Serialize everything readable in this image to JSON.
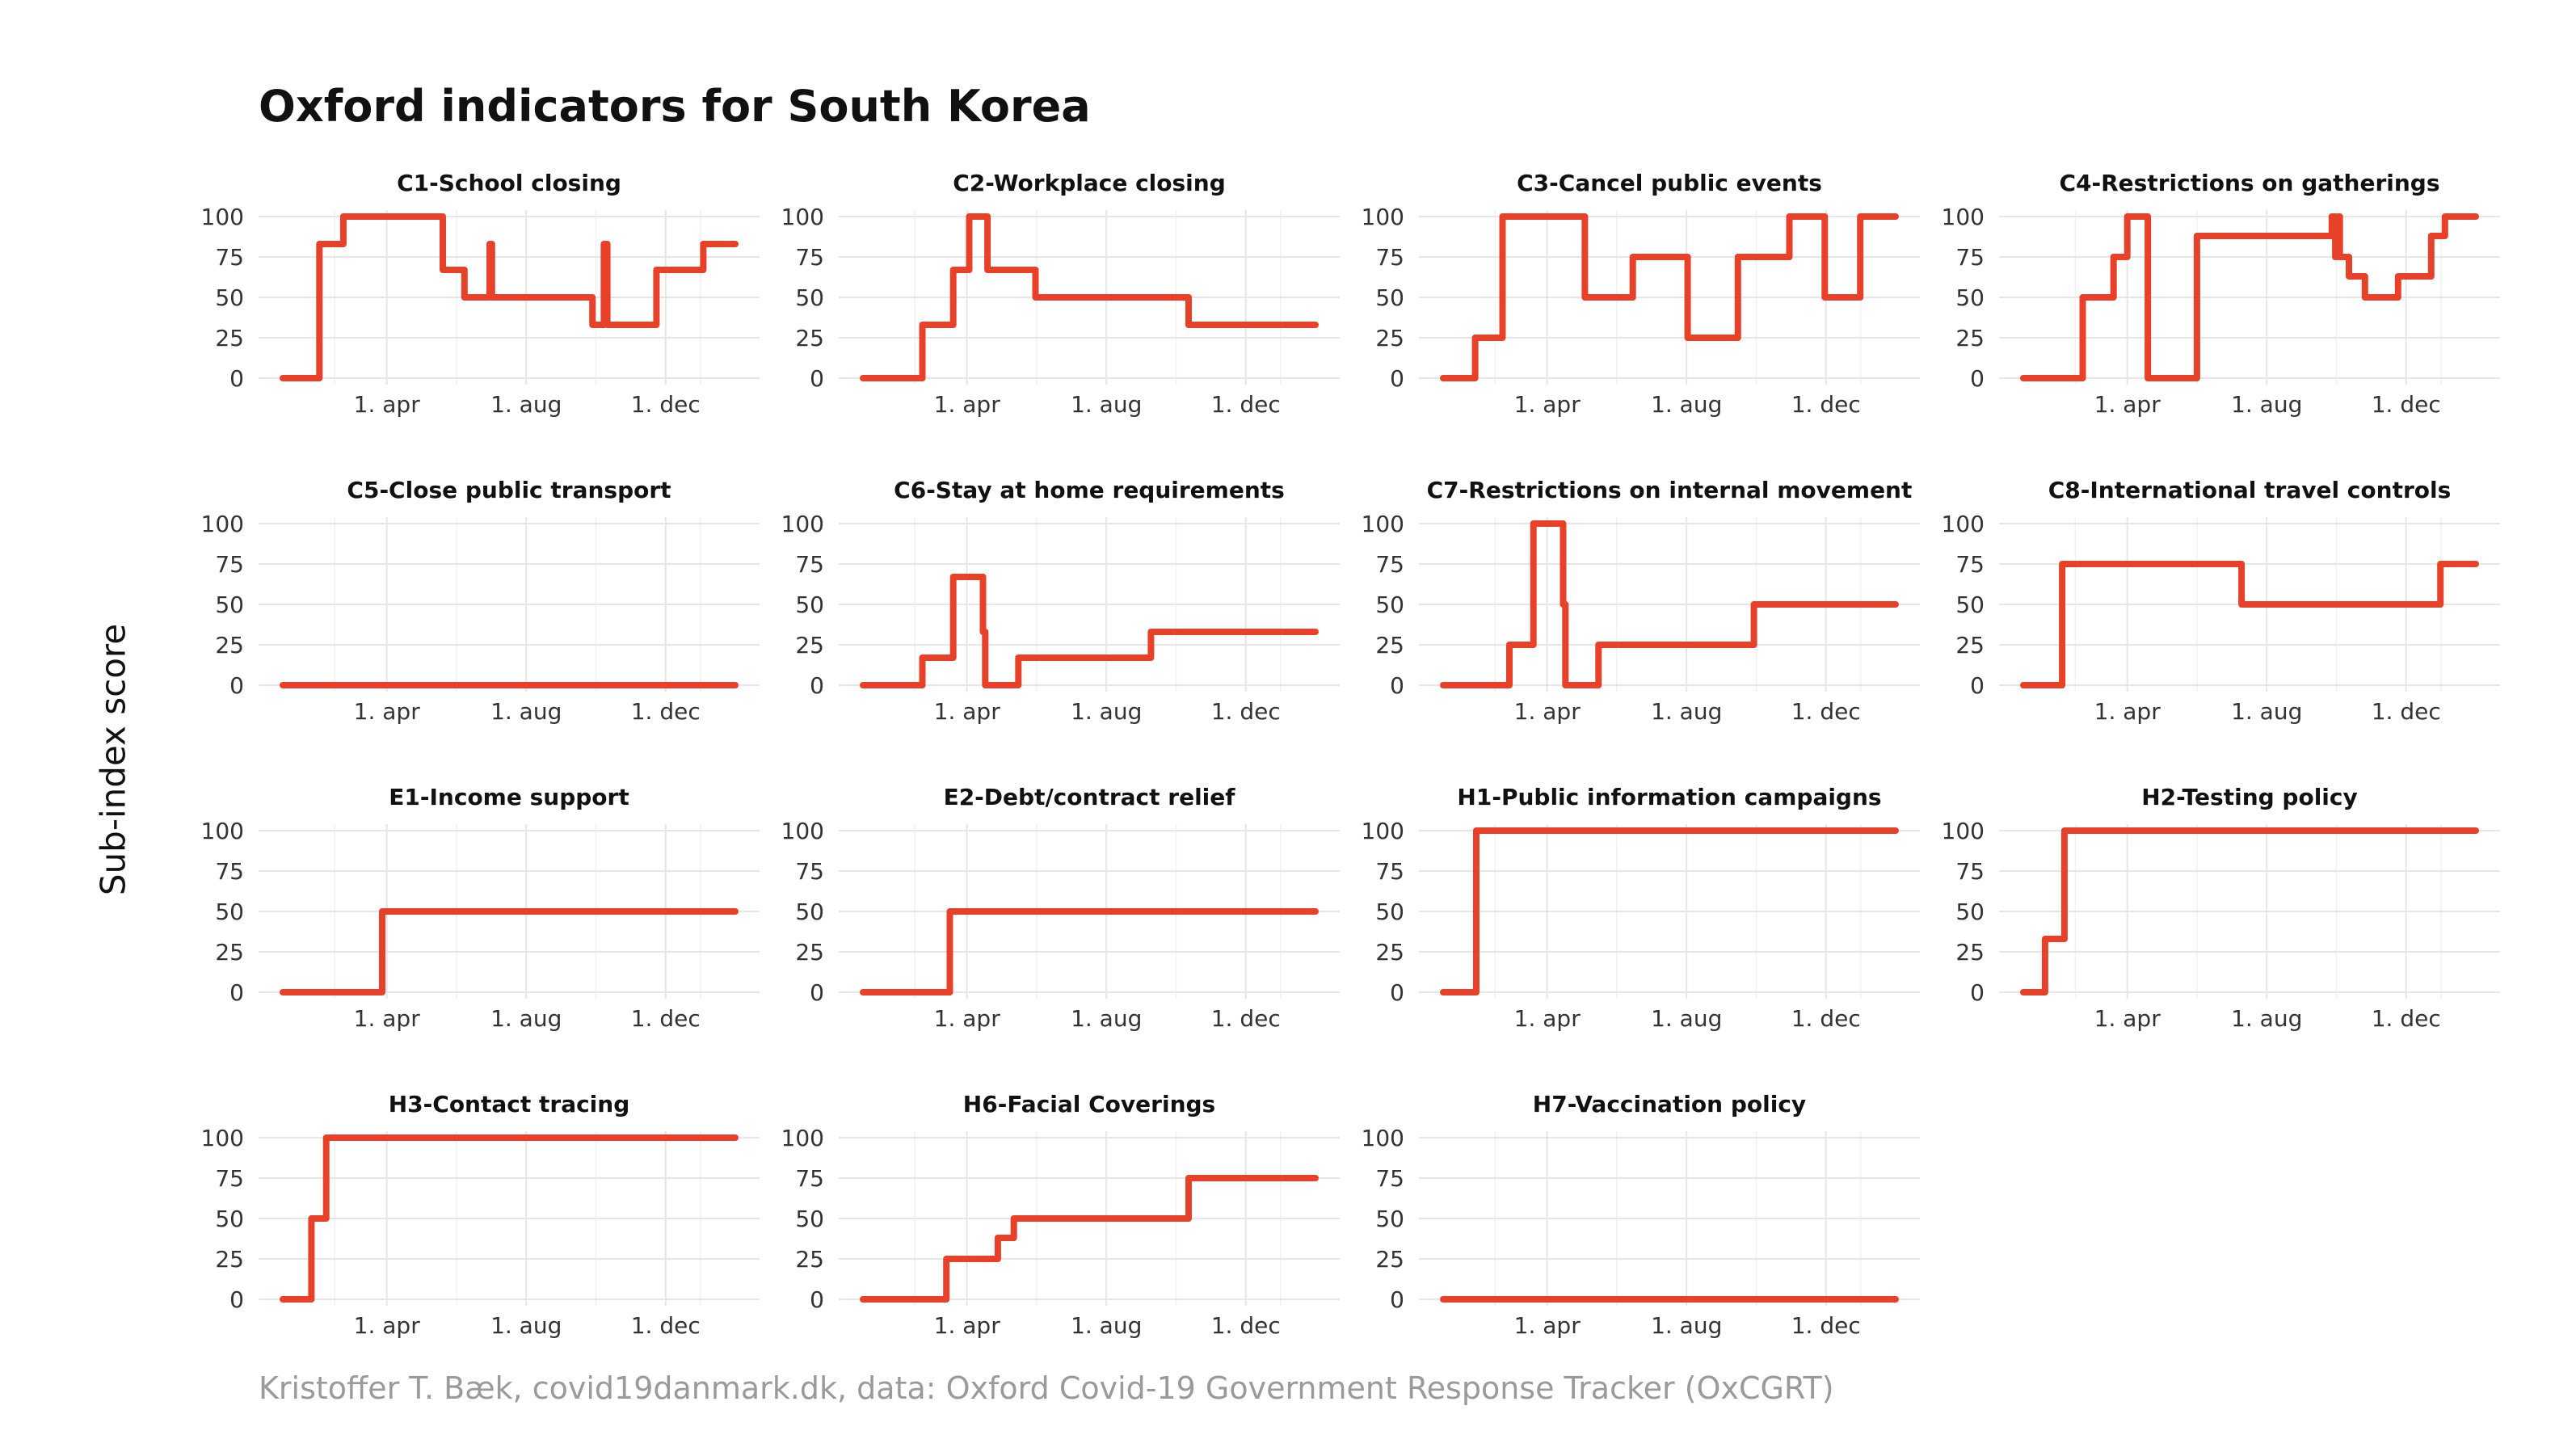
{
  "title": "Oxford indicators for South Korea",
  "ylabel": "Sub-index score",
  "caption": "Kristoffer T. Bæk, covid19danmark.dk, data: Oxford Covid-19 Government Response Tracker (OxCGRT)",
  "colors": {
    "line": "#E8412A",
    "grid": "#E6E6E6",
    "text": "#111111",
    "caption": "#9A9A9A"
  },
  "axes": {
    "x_range": [
      "2020-01-01",
      "2021-01-31"
    ],
    "x_ticks": [
      {
        "date": "2020-04-01",
        "label": "1. apr"
      },
      {
        "date": "2020-08-01",
        "label": "1. aug"
      },
      {
        "date": "2020-12-01",
        "label": "1. dec"
      }
    ],
    "y_range": [
      0,
      100
    ],
    "y_ticks": [
      0,
      25,
      50,
      75,
      100
    ],
    "grid": true
  },
  "chart_data": [
    {
      "type": "line",
      "title": "C1-School closing",
      "points": [
        [
          "2020-01-01",
          0
        ],
        [
          "2020-02-02",
          0
        ],
        [
          "2020-02-02",
          83
        ],
        [
          "2020-02-23",
          83
        ],
        [
          "2020-02-23",
          100
        ],
        [
          "2020-05-20",
          100
        ],
        [
          "2020-05-20",
          67
        ],
        [
          "2020-06-08",
          67
        ],
        [
          "2020-06-08",
          50
        ],
        [
          "2020-06-30",
          50
        ],
        [
          "2020-06-30",
          83
        ],
        [
          "2020-07-02",
          83
        ],
        [
          "2020-07-02",
          50
        ],
        [
          "2020-09-28",
          50
        ],
        [
          "2020-09-28",
          33
        ],
        [
          "2020-10-08",
          33
        ],
        [
          "2020-10-08",
          83
        ],
        [
          "2020-10-11",
          83
        ],
        [
          "2020-10-11",
          33
        ],
        [
          "2020-11-23",
          33
        ],
        [
          "2020-11-23",
          67
        ],
        [
          "2021-01-03",
          67
        ],
        [
          "2021-01-03",
          83
        ],
        [
          "2021-01-31",
          83
        ]
      ]
    },
    {
      "type": "line",
      "title": "C2-Workplace closing",
      "points": [
        [
          "2020-01-01",
          0
        ],
        [
          "2020-02-22",
          0
        ],
        [
          "2020-02-22",
          33
        ],
        [
          "2020-03-20",
          33
        ],
        [
          "2020-03-20",
          67
        ],
        [
          "2020-04-03",
          67
        ],
        [
          "2020-04-03",
          100
        ],
        [
          "2020-04-19",
          100
        ],
        [
          "2020-04-19",
          67
        ],
        [
          "2020-05-31",
          67
        ],
        [
          "2020-05-31",
          50
        ],
        [
          "2020-10-12",
          50
        ],
        [
          "2020-10-12",
          33
        ],
        [
          "2021-01-31",
          33
        ]
      ]
    },
    {
      "type": "line",
      "title": "C3-Cancel public events",
      "points": [
        [
          "2020-01-01",
          0
        ],
        [
          "2020-01-29",
          0
        ],
        [
          "2020-01-29",
          25
        ],
        [
          "2020-02-22",
          25
        ],
        [
          "2020-02-22",
          100
        ],
        [
          "2020-05-04",
          100
        ],
        [
          "2020-05-04",
          50
        ],
        [
          "2020-06-15",
          50
        ],
        [
          "2020-06-15",
          75
        ],
        [
          "2020-08-02",
          75
        ],
        [
          "2020-08-02",
          25
        ],
        [
          "2020-09-15",
          25
        ],
        [
          "2020-09-15",
          75
        ],
        [
          "2020-10-30",
          75
        ],
        [
          "2020-10-30",
          100
        ],
        [
          "2020-11-30",
          100
        ],
        [
          "2020-11-30",
          50
        ],
        [
          "2020-12-31",
          50
        ],
        [
          "2020-12-31",
          100
        ],
        [
          "2021-01-31",
          100
        ]
      ]
    },
    {
      "type": "line",
      "title": "C4-Restrictions on gatherings",
      "points": [
        [
          "2020-01-01",
          0
        ],
        [
          "2020-02-22",
          0
        ],
        [
          "2020-02-22",
          50
        ],
        [
          "2020-03-20",
          50
        ],
        [
          "2020-03-20",
          75
        ],
        [
          "2020-04-01",
          75
        ],
        [
          "2020-04-01",
          100
        ],
        [
          "2020-04-19",
          100
        ],
        [
          "2020-04-19",
          0
        ],
        [
          "2020-06-01",
          0
        ],
        [
          "2020-06-01",
          88
        ],
        [
          "2020-09-27",
          88
        ],
        [
          "2020-09-27",
          100
        ],
        [
          "2020-09-30",
          100
        ],
        [
          "2020-09-30",
          75
        ],
        [
          "2020-10-02",
          75
        ],
        [
          "2020-10-02",
          100
        ],
        [
          "2020-10-04",
          100
        ],
        [
          "2020-10-04",
          75
        ],
        [
          "2020-10-12",
          75
        ],
        [
          "2020-10-12",
          63
        ],
        [
          "2020-10-26",
          63
        ],
        [
          "2020-10-26",
          50
        ],
        [
          "2020-11-24",
          50
        ],
        [
          "2020-11-24",
          63
        ],
        [
          "2020-12-23",
          63
        ],
        [
          "2020-12-23",
          88
        ],
        [
          "2021-01-04",
          88
        ],
        [
          "2021-01-04",
          100
        ],
        [
          "2021-01-31",
          100
        ]
      ]
    },
    {
      "type": "line",
      "title": "C5-Close public transport",
      "points": [
        [
          "2020-01-01",
          0
        ],
        [
          "2021-01-31",
          0
        ]
      ]
    },
    {
      "type": "line",
      "title": "C6-Stay at home requirements",
      "points": [
        [
          "2020-01-01",
          0
        ],
        [
          "2020-02-22",
          0
        ],
        [
          "2020-02-22",
          17
        ],
        [
          "2020-03-20",
          17
        ],
        [
          "2020-03-20",
          67
        ],
        [
          "2020-04-15",
          67
        ],
        [
          "2020-04-15",
          33
        ],
        [
          "2020-04-17",
          33
        ],
        [
          "2020-04-17",
          0
        ],
        [
          "2020-05-16",
          0
        ],
        [
          "2020-05-16",
          17
        ],
        [
          "2020-09-09",
          17
        ],
        [
          "2020-09-09",
          33
        ],
        [
          "2021-01-31",
          33
        ]
      ]
    },
    {
      "type": "line",
      "title": "C7-Restrictions on internal movement",
      "points": [
        [
          "2020-01-01",
          0
        ],
        [
          "2020-02-28",
          0
        ],
        [
          "2020-02-28",
          25
        ],
        [
          "2020-03-20",
          25
        ],
        [
          "2020-03-20",
          100
        ],
        [
          "2020-04-15",
          100
        ],
        [
          "2020-04-15",
          50
        ],
        [
          "2020-04-17",
          50
        ],
        [
          "2020-04-17",
          0
        ],
        [
          "2020-05-16",
          0
        ],
        [
          "2020-05-16",
          25
        ],
        [
          "2020-09-29",
          25
        ],
        [
          "2020-09-29",
          50
        ],
        [
          "2021-01-31",
          50
        ]
      ]
    },
    {
      "type": "line",
      "title": "C8-International travel controls",
      "points": [
        [
          "2020-01-01",
          0
        ],
        [
          "2020-02-04",
          0
        ],
        [
          "2020-02-04",
          75
        ],
        [
          "2020-07-10",
          75
        ],
        [
          "2020-07-10",
          50
        ],
        [
          "2020-12-31",
          50
        ],
        [
          "2020-12-31",
          75
        ],
        [
          "2021-01-31",
          75
        ]
      ]
    },
    {
      "type": "line",
      "title": "E1-Income support",
      "points": [
        [
          "2020-01-01",
          0
        ],
        [
          "2020-03-28",
          0
        ],
        [
          "2020-03-28",
          50
        ],
        [
          "2021-01-31",
          50
        ]
      ]
    },
    {
      "type": "line",
      "title": "E2-Debt/contract relief",
      "points": [
        [
          "2020-01-01",
          0
        ],
        [
          "2020-03-17",
          0
        ],
        [
          "2020-03-17",
          50
        ],
        [
          "2021-01-31",
          50
        ]
      ]
    },
    {
      "type": "line",
      "title": "H1-Public information campaigns",
      "points": [
        [
          "2020-01-01",
          0
        ],
        [
          "2020-01-30",
          0
        ],
        [
          "2020-01-30",
          100
        ],
        [
          "2021-01-31",
          100
        ]
      ]
    },
    {
      "type": "line",
      "title": "H2-Testing policy",
      "points": [
        [
          "2020-01-01",
          0
        ],
        [
          "2020-01-20",
          0
        ],
        [
          "2020-01-20",
          33
        ],
        [
          "2020-02-06",
          33
        ],
        [
          "2020-02-06",
          100
        ],
        [
          "2021-01-31",
          100
        ]
      ]
    },
    {
      "type": "line",
      "title": "H3-Contact tracing",
      "points": [
        [
          "2020-01-01",
          0
        ],
        [
          "2020-01-26",
          0
        ],
        [
          "2020-01-26",
          50
        ],
        [
          "2020-02-08",
          50
        ],
        [
          "2020-02-08",
          100
        ],
        [
          "2021-01-31",
          100
        ]
      ]
    },
    {
      "type": "line",
      "title": "H6-Facial Coverings",
      "points": [
        [
          "2020-01-01",
          0
        ],
        [
          "2020-03-14",
          0
        ],
        [
          "2020-03-14",
          25
        ],
        [
          "2020-04-28",
          25
        ],
        [
          "2020-04-28",
          38
        ],
        [
          "2020-05-12",
          38
        ],
        [
          "2020-05-12",
          50
        ],
        [
          "2020-10-12",
          50
        ],
        [
          "2020-10-12",
          75
        ],
        [
          "2021-01-31",
          75
        ]
      ]
    },
    {
      "type": "line",
      "title": "H7-Vaccination policy",
      "points": [
        [
          "2020-01-01",
          0
        ],
        [
          "2021-01-31",
          0
        ]
      ]
    }
  ]
}
